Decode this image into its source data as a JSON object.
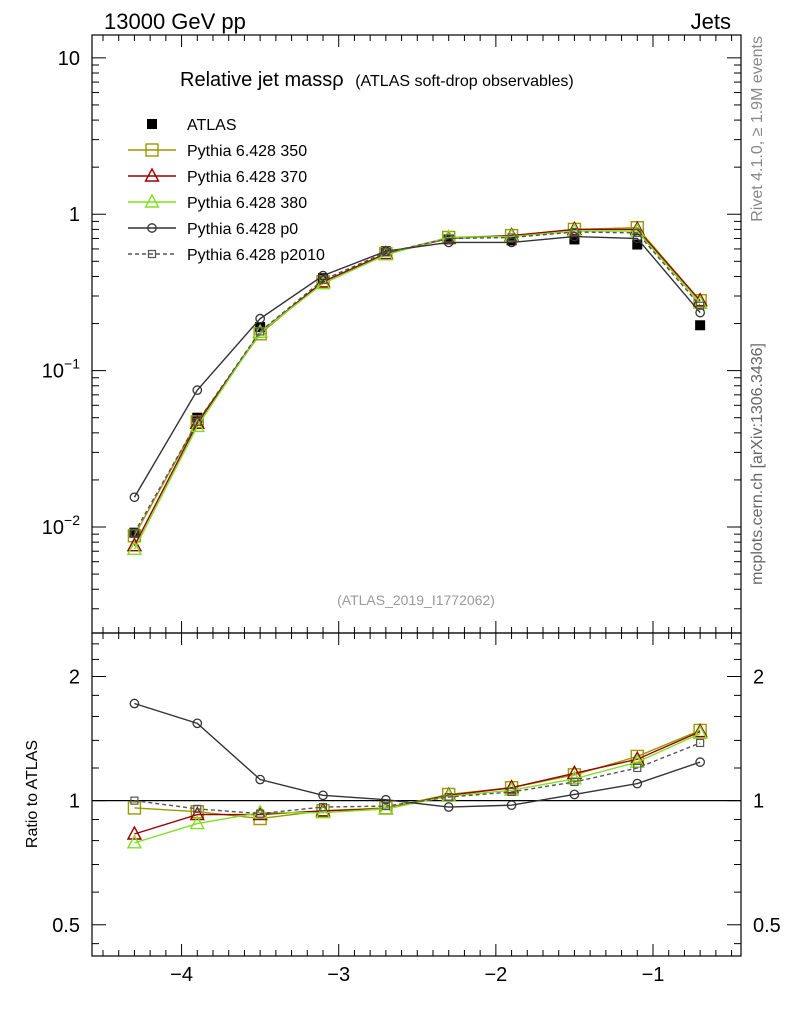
{
  "header": {
    "left": "13000 GeV pp",
    "right": "Jets"
  },
  "side_text": {
    "top": "Rivet 4.1.0, ≥ 1.9M events",
    "bottom": "mcplots.cern.ch [arXiv:1306.3436]"
  },
  "chart_data": {
    "type": "line",
    "title": "Relative jet massρ",
    "title_sub": "(ATLAS soft-drop observables)",
    "watermark": "(ATLAS_2019_I1772062)",
    "xlim": [
      -4.57,
      -0.44
    ],
    "x": [
      -4.3,
      -3.9,
      -3.5,
      -3.1,
      -2.7,
      -2.3,
      -1.9,
      -1.5,
      -1.1,
      -0.7
    ],
    "x_ticks": [
      {
        "v": -4,
        "label": "−4"
      },
      {
        "v": -3,
        "label": "−3"
      },
      {
        "v": -2,
        "label": "−2"
      },
      {
        "v": -1,
        "label": "−1"
      }
    ],
    "main": {
      "scale": "log",
      "ylim": [
        0.0021,
        14
      ],
      "y_ticks": [
        {
          "v": 10,
          "base": "10",
          "exp": ""
        },
        {
          "v": 1,
          "base": "1",
          "exp": ""
        },
        {
          "v": 0.1,
          "base": "10",
          "exp": "−1"
        },
        {
          "v": 0.01,
          "base": "10",
          "exp": "−2"
        }
      ]
    },
    "ratio": {
      "scale": "log",
      "ylabel": "Ratio to ATLAS",
      "ylim": [
        0.42,
        2.55
      ],
      "reference": 1,
      "y_ticks": [
        {
          "v": 2,
          "label": "2"
        },
        {
          "v": 1,
          "label": "1"
        },
        {
          "v": 0.5,
          "label": "0.5"
        }
      ]
    },
    "series": [
      {
        "name": "ATLAS",
        "color": "#000000",
        "marker": "square-filled",
        "dash": "none",
        "values": [
          0.0092,
          0.05,
          0.19,
          0.39,
          0.58,
          0.69,
          0.68,
          0.69,
          0.64,
          0.195
        ],
        "ratio": [
          1,
          1,
          1,
          1,
          1,
          1,
          1,
          1,
          1,
          1
        ]
      },
      {
        "name": "Pythia 6.428 350",
        "color": "#999900",
        "marker": "square-open",
        "dash": "none",
        "values": [
          0.0088,
          0.047,
          0.172,
          0.37,
          0.56,
          0.71,
          0.73,
          0.8,
          0.82,
          0.28
        ],
        "ratio": [
          0.96,
          0.94,
          0.905,
          0.945,
          0.96,
          1.035,
          1.075,
          1.155,
          1.28,
          1.48
        ]
      },
      {
        "name": "Pythia 6.428 370",
        "color": "#990000",
        "marker": "triangle-open",
        "dash": "none",
        "values": [
          0.0076,
          0.046,
          0.176,
          0.37,
          0.56,
          0.7,
          0.73,
          0.8,
          0.8,
          0.28
        ],
        "ratio": [
          0.83,
          0.925,
          0.925,
          0.945,
          0.955,
          1.03,
          1.075,
          1.165,
          1.26,
          1.47
        ]
      },
      {
        "name": "Pythia 6.428 380",
        "color": "#80e020",
        "marker": "triangle-open",
        "dash": "none",
        "values": [
          0.0072,
          0.044,
          0.176,
          0.36,
          0.55,
          0.71,
          0.72,
          0.78,
          0.78,
          0.27
        ],
        "ratio": [
          0.79,
          0.88,
          0.935,
          0.935,
          0.955,
          1.025,
          1.06,
          1.13,
          1.24,
          1.455
        ]
      },
      {
        "name": "Pythia 6.428 p0",
        "color": "#333333",
        "marker": "circle-open",
        "dash": "none",
        "values": [
          0.0155,
          0.075,
          0.215,
          0.405,
          0.58,
          0.66,
          0.66,
          0.72,
          0.7,
          0.235
        ],
        "ratio": [
          1.72,
          1.54,
          1.125,
          1.03,
          1.005,
          0.965,
          0.975,
          1.035,
          1.1,
          1.24
        ]
      },
      {
        "name": "Pythia 6.428 p2010",
        "color": "#555555",
        "marker": "square-open-small",
        "dash": "4,3",
        "values": [
          0.0092,
          0.047,
          0.178,
          0.38,
          0.57,
          0.7,
          0.71,
          0.77,
          0.76,
          0.26
        ],
        "ratio": [
          1.0,
          0.955,
          0.93,
          0.965,
          0.97,
          1.02,
          1.05,
          1.11,
          1.2,
          1.38
        ]
      }
    ]
  }
}
